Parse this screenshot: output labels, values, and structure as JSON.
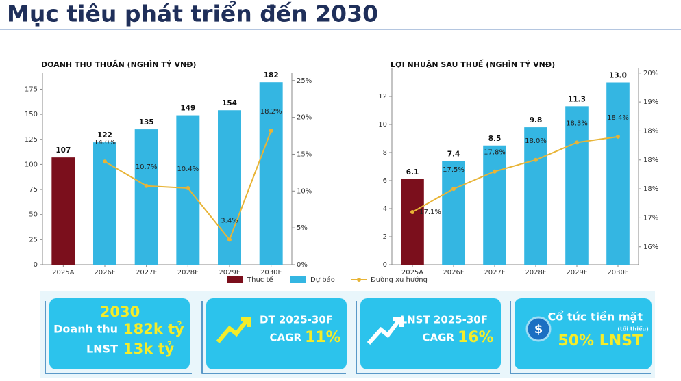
{
  "header": {
    "title": "Mục tiêu phát triển đến 2030"
  },
  "chart_data": [
    {
      "type": "bar",
      "title": "DOANH THU THUẦN (NGHÌN TỶ VNĐ)",
      "categories": [
        "2025A",
        "2026F",
        "2027F",
        "2028F",
        "2029F",
        "2030F"
      ],
      "series": [
        {
          "name": "Thực tế",
          "color": "#7b0f1c",
          "values": [
            107,
            null,
            null,
            null,
            null,
            null
          ]
        },
        {
          "name": "Dự báo",
          "color": "#34b6e2",
          "values": [
            null,
            122,
            135,
            149,
            154,
            182
          ]
        },
        {
          "name": "Đường xu hướng",
          "type": "line",
          "axis": "y2",
          "color": "#e8b436",
          "values": [
            null,
            14.0,
            10.7,
            10.4,
            3.4,
            18.2
          ],
          "value_labels": [
            null,
            "14.0%",
            "10.7%",
            "10.4%",
            "3.4%",
            "18.2%"
          ]
        }
      ],
      "ylim": [
        0,
        191
      ],
      "yticks": [
        0,
        25,
        50,
        75,
        100,
        125,
        150,
        175
      ],
      "y2lim": [
        0,
        26
      ],
      "y2ticks": [
        {
          "value": 0,
          "label": "0%"
        },
        {
          "value": 5,
          "label": "5%"
        },
        {
          "value": 10,
          "label": "10%"
        },
        {
          "value": 15,
          "label": "15%"
        },
        {
          "value": 20,
          "label": "20%"
        },
        {
          "value": 25,
          "label": "25%"
        }
      ],
      "grid": false
    },
    {
      "type": "bar",
      "title": "LỢI NHUẬN SAU THUẾ (NGHÌN TỶ VNĐ)",
      "categories": [
        "2025A",
        "2026F",
        "2027F",
        "2028F",
        "2029F",
        "2030F"
      ],
      "series": [
        {
          "name": "Thực tế",
          "color": "#7b0f1c",
          "values": [
            6.1,
            null,
            null,
            null,
            null,
            null
          ]
        },
        {
          "name": "Dự báo",
          "color": "#34b6e2",
          "values": [
            null,
            7.4,
            8.5,
            9.8,
            11.3,
            13.0
          ],
          "value_labels": [
            null,
            "7.4",
            "8.5",
            "9.8",
            "11.3",
            "13.0"
          ]
        },
        {
          "name": "Đường xu hướng",
          "type": "line",
          "axis": "y2",
          "color": "#e8b436",
          "values": [
            17.1,
            17.5,
            17.8,
            18.0,
            18.3,
            18.4
          ],
          "value_labels": [
            "17.1%",
            "17.5%",
            "17.8%",
            "18.0%",
            "18.3%",
            "18.4%"
          ]
        }
      ],
      "ylim": [
        0,
        14
      ],
      "yticks": [
        0,
        2,
        4,
        6,
        8,
        10,
        12
      ],
      "y2lim": [
        16.19,
        19.58
      ],
      "y2ticks": [
        {
          "value": 16.5,
          "label": "16%"
        },
        {
          "value": 17.0,
          "label": "17%"
        },
        {
          "value": 17.5,
          "label": "18%"
        },
        {
          "value": 18.0,
          "label": "18%"
        },
        {
          "value": 18.5,
          "label": "18%"
        },
        {
          "value": 19.0,
          "label": "19%"
        },
        {
          "value": 19.5,
          "label": "20%"
        }
      ],
      "grid": false
    }
  ],
  "cards": [
    {
      "year": "2030",
      "revenue_label": "Doanh thu",
      "revenue_value": "182k tỷ",
      "profit_label": "LNST",
      "profit_value": "13k tỷ"
    },
    {
      "title": "DT 2025-30F",
      "metric": "CAGR",
      "value": "11%"
    },
    {
      "title": "LNST 2025-30F",
      "metric": "CAGR",
      "value": "16%"
    },
    {
      "icon": "$",
      "title": "Cổ tức tiền mặt",
      "note": "(tối thiểu)",
      "value": "50% LNST"
    }
  ]
}
